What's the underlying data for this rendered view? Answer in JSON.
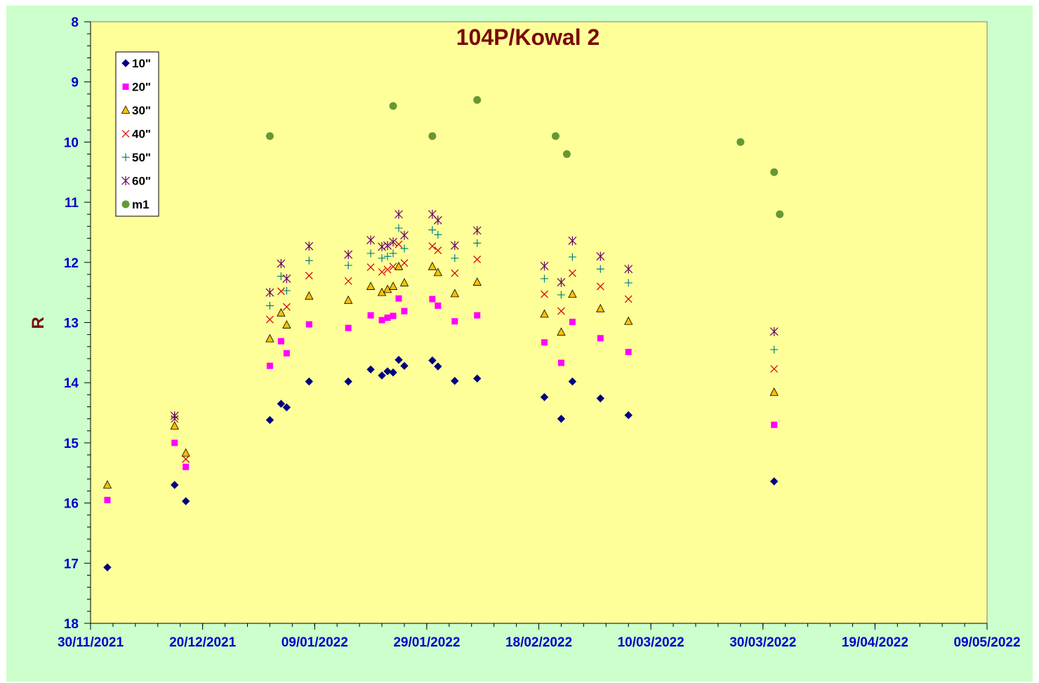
{
  "chart_data": {
    "type": "scatter",
    "title": "104P/Kowal 2",
    "xlabel": "",
    "ylabel": "R",
    "x_ticks": [
      "30/11/2021",
      "20/12/2021",
      "09/01/2022",
      "29/01/2022",
      "18/02/2022",
      "10/03/2022",
      "30/03/2022",
      "19/04/2022",
      "09/05/2022"
    ],
    "xlim": [
      "2021-11-30",
      "2022-05-09"
    ],
    "ylim": [
      8,
      18
    ],
    "y_inverted": true,
    "y_ticks": [
      8,
      9,
      10,
      11,
      12,
      13,
      14,
      15,
      16,
      17,
      18
    ],
    "grid": false,
    "legend_position": "top-left",
    "colors": {
      "page_background": "#ccffcc",
      "plot_background": "#ffff99"
    },
    "series": [
      {
        "name": "10\"",
        "marker": "diamond",
        "color": "#000080",
        "points": [
          [
            "2021-12-03",
            17.07
          ],
          [
            "2021-12-15",
            15.7
          ],
          [
            "2021-12-17",
            15.97
          ],
          [
            "2022-01-01",
            14.62
          ],
          [
            "2022-01-03",
            14.35
          ],
          [
            "2022-01-04",
            14.41
          ],
          [
            "2022-01-08",
            13.98
          ],
          [
            "2022-01-15",
            13.98
          ],
          [
            "2022-01-19",
            13.78
          ],
          [
            "2022-01-21",
            13.88
          ],
          [
            "2022-01-22",
            13.81
          ],
          [
            "2022-01-23",
            13.83
          ],
          [
            "2022-01-24",
            13.62
          ],
          [
            "2022-01-25",
            13.72
          ],
          [
            "2022-01-30",
            13.63
          ],
          [
            "2022-01-31",
            13.73
          ],
          [
            "2022-02-03",
            13.97
          ],
          [
            "2022-02-07",
            13.93
          ],
          [
            "2022-02-19",
            14.24
          ],
          [
            "2022-02-22",
            14.6
          ],
          [
            "2022-02-24",
            13.98
          ],
          [
            "2022-03-01",
            14.26
          ],
          [
            "2022-03-06",
            14.54
          ],
          [
            "2022-04-01",
            15.64
          ]
        ]
      },
      {
        "name": "20\"",
        "marker": "square",
        "color": "#ff00ff",
        "points": [
          [
            "2021-12-03",
            15.95
          ],
          [
            "2021-12-15",
            15.0
          ],
          [
            "2021-12-17",
            15.4
          ],
          [
            "2022-01-01",
            13.72
          ],
          [
            "2022-01-03",
            13.31
          ],
          [
            "2022-01-04",
            13.51
          ],
          [
            "2022-01-08",
            13.03
          ],
          [
            "2022-01-15",
            13.09
          ],
          [
            "2022-01-19",
            12.88
          ],
          [
            "2022-01-21",
            12.96
          ],
          [
            "2022-01-22",
            12.92
          ],
          [
            "2022-01-23",
            12.89
          ],
          [
            "2022-01-24",
            12.6
          ],
          [
            "2022-01-25",
            12.81
          ],
          [
            "2022-01-30",
            12.61
          ],
          [
            "2022-01-31",
            12.72
          ],
          [
            "2022-02-03",
            12.98
          ],
          [
            "2022-02-07",
            12.88
          ],
          [
            "2022-02-19",
            13.33
          ],
          [
            "2022-02-22",
            13.67
          ],
          [
            "2022-02-24",
            12.99
          ],
          [
            "2022-03-01",
            13.26
          ],
          [
            "2022-03-06",
            13.49
          ],
          [
            "2022-04-01",
            14.7
          ]
        ]
      },
      {
        "name": "30\"",
        "marker": "triangle",
        "color": "#ffc000",
        "points": [
          [
            "2021-12-03",
            15.7
          ],
          [
            "2021-12-15",
            14.72
          ],
          [
            "2021-12-17",
            15.17
          ],
          [
            "2022-01-01",
            13.27
          ],
          [
            "2022-01-03",
            12.84
          ],
          [
            "2022-01-04",
            13.04
          ],
          [
            "2022-01-08",
            12.56
          ],
          [
            "2022-01-15",
            12.63
          ],
          [
            "2022-01-19",
            12.4
          ],
          [
            "2022-01-21",
            12.5
          ],
          [
            "2022-01-22",
            12.45
          ],
          [
            "2022-01-23",
            12.4
          ],
          [
            "2022-01-24",
            12.07
          ],
          [
            "2022-01-25",
            12.34
          ],
          [
            "2022-01-30",
            12.07
          ],
          [
            "2022-01-31",
            12.17
          ],
          [
            "2022-02-03",
            12.52
          ],
          [
            "2022-02-07",
            12.33
          ],
          [
            "2022-02-19",
            12.86
          ],
          [
            "2022-02-22",
            13.16
          ],
          [
            "2022-02-24",
            12.53
          ],
          [
            "2022-03-01",
            12.77
          ],
          [
            "2022-03-06",
            12.98
          ],
          [
            "2022-04-01",
            14.16
          ]
        ]
      },
      {
        "name": "40\"",
        "marker": "x",
        "color": "#cc0000",
        "points": [
          [
            "2021-12-15",
            14.6
          ],
          [
            "2021-12-17",
            15.27
          ],
          [
            "2022-01-01",
            12.95
          ],
          [
            "2022-01-03",
            12.48
          ],
          [
            "2022-01-04",
            12.74
          ],
          [
            "2022-01-08",
            12.22
          ],
          [
            "2022-01-15",
            12.31
          ],
          [
            "2022-01-19",
            12.08
          ],
          [
            "2022-01-21",
            12.16
          ],
          [
            "2022-01-22",
            12.12
          ],
          [
            "2022-01-23",
            12.07
          ],
          [
            "2022-01-24",
            11.7
          ],
          [
            "2022-01-25",
            12.01
          ],
          [
            "2022-01-30",
            11.73
          ],
          [
            "2022-01-31",
            11.8
          ],
          [
            "2022-02-03",
            12.18
          ],
          [
            "2022-02-07",
            11.95
          ],
          [
            "2022-02-19",
            12.53
          ],
          [
            "2022-02-22",
            12.81
          ],
          [
            "2022-02-24",
            12.18
          ],
          [
            "2022-03-01",
            12.4
          ],
          [
            "2022-03-06",
            12.61
          ],
          [
            "2022-04-01",
            13.77
          ]
        ]
      },
      {
        "name": "50\"",
        "marker": "plus",
        "color": "#008080",
        "points": [
          [
            "2021-12-15",
            14.57
          ],
          [
            "2022-01-01",
            12.72
          ],
          [
            "2022-01-03",
            12.23
          ],
          [
            "2022-01-04",
            12.47
          ],
          [
            "2022-01-08",
            11.97
          ],
          [
            "2022-01-15",
            12.05
          ],
          [
            "2022-01-19",
            11.85
          ],
          [
            "2022-01-21",
            11.93
          ],
          [
            "2022-01-22",
            11.9
          ],
          [
            "2022-01-23",
            11.85
          ],
          [
            "2022-01-24",
            11.43
          ],
          [
            "2022-01-25",
            11.77
          ],
          [
            "2022-01-30",
            11.46
          ],
          [
            "2022-01-31",
            11.54
          ],
          [
            "2022-02-03",
            11.93
          ],
          [
            "2022-02-07",
            11.68
          ],
          [
            "2022-02-19",
            12.27
          ],
          [
            "2022-02-22",
            12.54
          ],
          [
            "2022-02-24",
            11.91
          ],
          [
            "2022-03-01",
            12.11
          ],
          [
            "2022-03-06",
            12.34
          ],
          [
            "2022-04-01",
            13.45
          ]
        ]
      },
      {
        "name": "60\"",
        "marker": "star",
        "color": "#660066",
        "points": [
          [
            "2021-12-15",
            14.55
          ],
          [
            "2022-01-01",
            12.5
          ],
          [
            "2022-01-03",
            12.02
          ],
          [
            "2022-01-04",
            12.27
          ],
          [
            "2022-01-08",
            11.73
          ],
          [
            "2022-01-15",
            11.87
          ],
          [
            "2022-01-19",
            11.63
          ],
          [
            "2022-01-21",
            11.74
          ],
          [
            "2022-01-22",
            11.72
          ],
          [
            "2022-01-23",
            11.66
          ],
          [
            "2022-01-24",
            11.2
          ],
          [
            "2022-01-25",
            11.55
          ],
          [
            "2022-01-30",
            11.2
          ],
          [
            "2022-01-31",
            11.3
          ],
          [
            "2022-02-03",
            11.72
          ],
          [
            "2022-02-07",
            11.47
          ],
          [
            "2022-02-19",
            12.06
          ],
          [
            "2022-02-22",
            12.33
          ],
          [
            "2022-02-24",
            11.64
          ],
          [
            "2022-03-01",
            11.9
          ],
          [
            "2022-03-06",
            12.11
          ],
          [
            "2022-04-01",
            13.15
          ]
        ]
      },
      {
        "name": "m1",
        "marker": "circle",
        "color": "#669933",
        "points": [
          [
            "2022-01-01",
            9.9
          ],
          [
            "2022-01-23",
            9.4
          ],
          [
            "2022-01-30",
            9.9
          ],
          [
            "2022-02-07",
            9.3
          ],
          [
            "2022-02-21",
            9.9
          ],
          [
            "2022-02-23",
            10.2
          ],
          [
            "2022-03-26",
            10.0
          ],
          [
            "2022-04-01",
            10.5
          ],
          [
            "2022-04-02",
            11.2
          ]
        ]
      }
    ]
  }
}
